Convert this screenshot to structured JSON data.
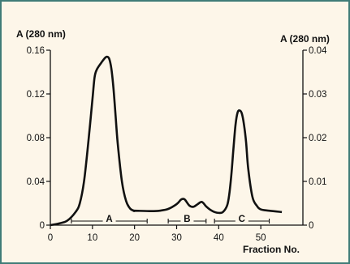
{
  "chart_data": {
    "type": "line",
    "title": "",
    "xlabel": "Fraction No.",
    "ylabel_left": "A (280 nm)",
    "ylabel_right": "A (280 nm)",
    "xlim": [
      0,
      60
    ],
    "ylim_left": [
      0,
      0.16
    ],
    "ylim_right": [
      0,
      0.04
    ],
    "x_ticks": [
      "0",
      "10",
      "20",
      "30",
      "40",
      "50"
    ],
    "y_ticks_left": [
      "0",
      "0.04",
      "0.08",
      "0.12",
      "0.16"
    ],
    "y_ticks_right": [
      "0",
      "0.01",
      "0.02",
      "0.03",
      "0.04"
    ],
    "grid": false,
    "series": [
      {
        "axis": "left",
        "x": [
          0,
          2,
          4,
          6,
          7,
          8,
          9,
          10,
          10.5,
          11,
          12,
          13,
          13.5,
          14,
          14.5,
          15,
          15.5,
          16,
          17,
          18,
          19,
          20
        ],
        "y": [
          0,
          0.0015,
          0.004,
          0.012,
          0.02,
          0.04,
          0.075,
          0.115,
          0.135,
          0.142,
          0.148,
          0.153,
          0.154,
          0.152,
          0.143,
          0.125,
          0.1,
          0.075,
          0.04,
          0.022,
          0.015,
          0.013
        ]
      },
      {
        "axis": "right",
        "x": [
          20,
          24,
          26,
          28,
          30,
          31,
          31.5,
          32,
          33,
          34,
          35,
          36,
          37,
          38,
          39,
          40,
          41,
          42,
          42.5,
          43,
          43.5,
          44,
          44.5,
          45,
          45.5,
          46,
          46.5,
          47,
          48,
          49,
          50,
          52,
          55
        ],
        "y": [
          0.0033,
          0.0032,
          0.0033,
          0.0037,
          0.0048,
          0.0058,
          0.006,
          0.0058,
          0.0045,
          0.0042,
          0.0048,
          0.0053,
          0.0043,
          0.0035,
          0.003,
          0.0028,
          0.003,
          0.0045,
          0.007,
          0.0115,
          0.0175,
          0.023,
          0.0258,
          0.0262,
          0.0255,
          0.023,
          0.019,
          0.013,
          0.0065,
          0.0045,
          0.0036,
          0.0033,
          0.003
        ]
      }
    ],
    "regions": [
      {
        "label": "A",
        "x": [
          5,
          23
        ]
      },
      {
        "label": "B",
        "x": [
          28,
          37
        ]
      },
      {
        "label": "C",
        "x": [
          39,
          52
        ]
      }
    ]
  }
}
